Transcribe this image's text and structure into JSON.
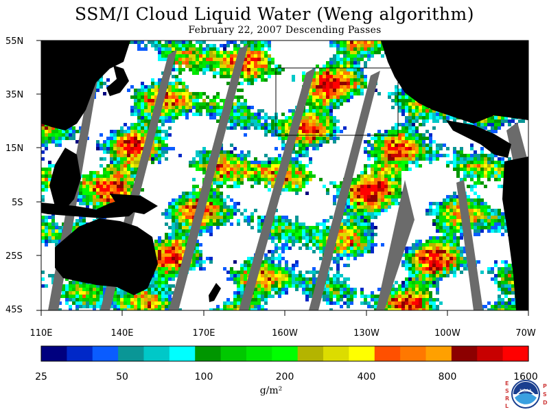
{
  "title": "SSM/I Cloud Liquid Water (Weng algorithm)",
  "subtitle": "February 22, 2007  Descending Passes",
  "map": {
    "lat_labels": [
      "55N",
      "35N",
      "15N",
      "5S",
      "25S",
      "45S"
    ],
    "lon_labels": [
      "110E",
      "140E",
      "170E",
      "160W",
      "130W",
      "100W",
      "70W"
    ],
    "no_data_color": "#6b6b6b",
    "land_color": "#000000",
    "clear_color": "#ffffff"
  },
  "colorbar": {
    "unit": "g/m²",
    "tick_labels": [
      "25",
      "50",
      "100",
      "200",
      "400",
      "800",
      "1600"
    ],
    "colors": [
      "#00007f",
      "#0028c8",
      "#0a5cff",
      "#0a9696",
      "#00c8c8",
      "#00ffff",
      "#009600",
      "#00c800",
      "#00e600",
      "#00ff00",
      "#b4b400",
      "#dcdc00",
      "#ffff00",
      "#ff5000",
      "#ff7800",
      "#ffa000",
      "#8c0000",
      "#c80000",
      "#ff0000"
    ]
  },
  "logo": {
    "left_letters": [
      "E",
      "S",
      "R",
      "L"
    ],
    "right_letters": [
      "P",
      "S",
      "D"
    ],
    "badge": "NOAA"
  }
}
